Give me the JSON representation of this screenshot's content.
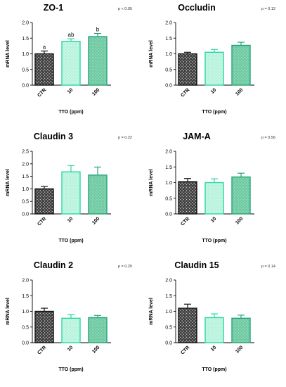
{
  "figure": {
    "xlabel": "TTO (ppm)",
    "ylabel": "mRNA level"
  },
  "colors": {
    "ctr_fill": "#3a3a3a",
    "ctr_edge": "#111111",
    "ppm10_fill": "#b6f3dc",
    "ppm10_edge": "#2ad6a4",
    "ppm100_fill": "#7fd2ae",
    "ppm100_edge": "#23a377"
  },
  "chart_data": [
    {
      "type": "bar",
      "title": "ZO-1",
      "pvalue": "p < 0.05",
      "categories": [
        "CTR",
        "10",
        "100"
      ],
      "values": [
        1.0,
        1.4,
        1.55
      ],
      "errors": [
        0.09,
        0.08,
        0.1
      ],
      "labels": [
        "a",
        "ab",
        "b"
      ],
      "ylim": [
        0,
        2.0
      ],
      "yticks": [
        "0.0",
        "0.5",
        "1.0",
        "1.5",
        "2.0"
      ],
      "xlabel": "TTO (ppm)",
      "ylabel": "mRNA level"
    },
    {
      "type": "bar",
      "title": "Occludin",
      "pvalue": "p = 0.12",
      "categories": [
        "CTR",
        "10",
        "100"
      ],
      "values": [
        1.0,
        1.05,
        1.27
      ],
      "errors": [
        0.05,
        0.09,
        0.1
      ],
      "labels": [
        "",
        "",
        ""
      ],
      "ylim": [
        0,
        2.0
      ],
      "yticks": [
        "0.0",
        "0.5",
        "1.0",
        "1.5",
        "2.0"
      ],
      "xlabel": "TTO (ppm)",
      "ylabel": "mRNA level"
    },
    {
      "type": "bar",
      "title": "Claudin 3",
      "pvalue": "p = 0.22",
      "categories": [
        "CTR",
        "10",
        "100"
      ],
      "values": [
        1.0,
        1.68,
        1.55
      ],
      "errors": [
        0.1,
        0.25,
        0.32
      ],
      "labels": [
        "",
        "",
        ""
      ],
      "ylim": [
        0,
        2.5
      ],
      "yticks": [
        "0.0",
        "0.5",
        "1.0",
        "1.5",
        "2.0",
        "2.5"
      ],
      "xlabel": "TTO (ppm)",
      "ylabel": "mRNA level"
    },
    {
      "type": "bar",
      "title": "JAM-A",
      "pvalue": "p = 0.56",
      "categories": [
        "CTR",
        "10",
        "100"
      ],
      "values": [
        1.03,
        1.0,
        1.18
      ],
      "errors": [
        0.1,
        0.12,
        0.12
      ],
      "labels": [
        "",
        "",
        ""
      ],
      "ylim": [
        0,
        2.0
      ],
      "yticks": [
        "0.0",
        "0.5",
        "1.0",
        "1.5",
        "2.0"
      ],
      "xlabel": "TTO (ppm)",
      "ylabel": "mRNA level"
    },
    {
      "type": "bar",
      "title": "Claudin 2",
      "pvalue": "p = 0.20",
      "categories": [
        "CTR",
        "10",
        "100"
      ],
      "values": [
        1.0,
        0.78,
        0.8
      ],
      "errors": [
        0.1,
        0.12,
        0.07
      ],
      "labels": [
        "",
        "",
        ""
      ],
      "ylim": [
        0,
        2.0
      ],
      "yticks": [
        "0.0",
        "0.5",
        "1.0",
        "1.5",
        "2.0"
      ],
      "xlabel": "TTO (ppm)",
      "ylabel": "mRNA level"
    },
    {
      "type": "bar",
      "title": "Claudin 15",
      "pvalue": "p = 0.14",
      "categories": [
        "CTR",
        "10",
        "100"
      ],
      "values": [
        1.1,
        0.8,
        0.78
      ],
      "errors": [
        0.13,
        0.12,
        0.1
      ],
      "labels": [
        "",
        "",
        ""
      ],
      "ylim": [
        0,
        2.0
      ],
      "yticks": [
        "0.0",
        "0.5",
        "1.0",
        "1.5",
        "2.0"
      ],
      "xlabel": "TTO (ppm)",
      "ylabel": "mRNA level"
    }
  ]
}
